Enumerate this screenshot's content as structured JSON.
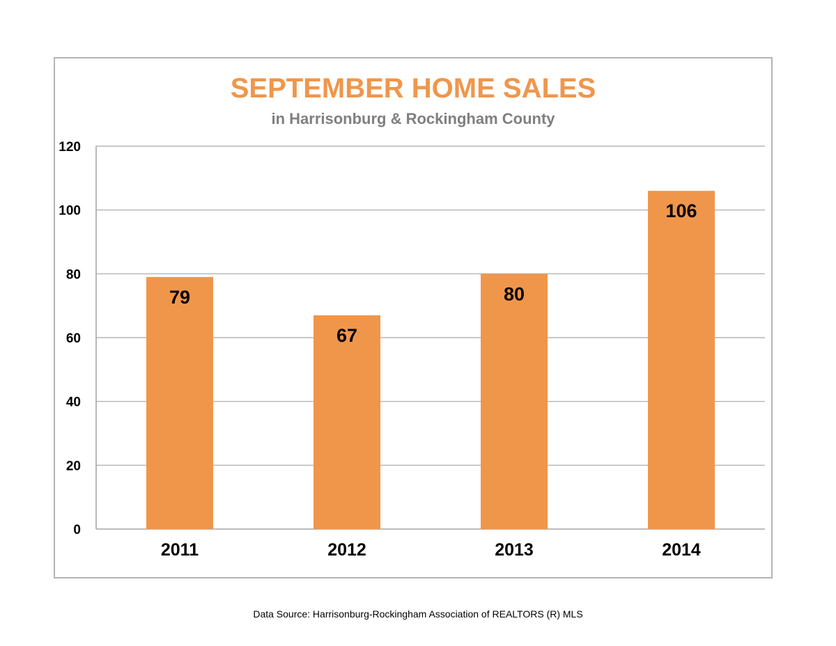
{
  "chart_data": {
    "type": "bar",
    "title": "SEPTEMBER HOME SALES",
    "subtitle": "in Harrisonburg & Rockingham County",
    "categories": [
      "2011",
      "2012",
      "2013",
      "2014"
    ],
    "values": [
      79,
      67,
      80,
      106
    ],
    "data_labels": [
      "79",
      "67",
      "80",
      "106"
    ],
    "xlabel": "",
    "ylabel": "",
    "ylim": [
      0,
      120
    ],
    "yticks": [
      0,
      20,
      40,
      60,
      80,
      100,
      120
    ],
    "grid": true,
    "legend": "none",
    "bar_color": "#f0964b",
    "title_color": "#f0964b",
    "subtitle_color": "#7f7f7f",
    "gridline_color": "#a6a6a6"
  },
  "footer": {
    "source": "Data Source: Harrisonburg-Rockingham Association of REALTORS (R) MLS"
  }
}
